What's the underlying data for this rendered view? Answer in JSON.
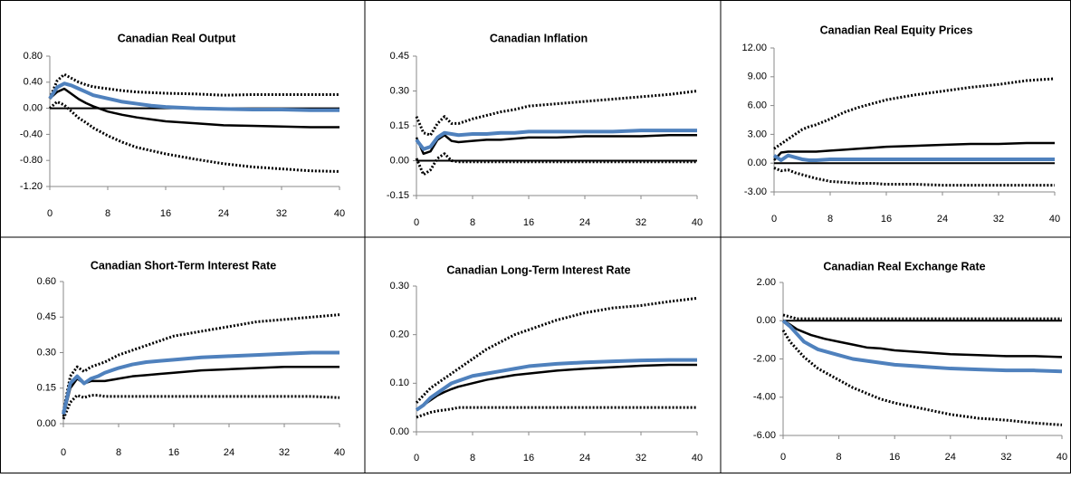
{
  "chart_data": [
    {
      "type": "line",
      "title": "Canadian Real Output",
      "x": [
        0,
        1,
        2,
        3,
        4,
        5,
        6,
        8,
        10,
        12,
        14,
        16,
        20,
        24,
        28,
        32,
        36,
        40
      ],
      "xlim": [
        0,
        40
      ],
      "xticks": [
        0,
        8,
        16,
        24,
        32,
        40
      ],
      "ylim": [
        -1.2,
        0.8
      ],
      "yticks": [
        {
          "value": -1.2,
          "label": "-1.20"
        },
        {
          "value": -0.8,
          "label": "-0.80"
        },
        {
          "value": -0.4,
          "label": "-0.40"
        },
        {
          "value": 0,
          "label": "0.00"
        },
        {
          "value": 0.4,
          "label": "0.40"
        },
        {
          "value": 0.8,
          "label": "0.80"
        }
      ],
      "series": [
        {
          "color": "#000000",
          "style": "dotted",
          "values": [
            0.15,
            0.42,
            0.52,
            0.46,
            0.4,
            0.36,
            0.33,
            0.3,
            0.27,
            0.25,
            0.24,
            0.23,
            0.22,
            0.2,
            0.21,
            0.21,
            0.21,
            0.21
          ]
        },
        {
          "color": "#000000",
          "style": "dotted",
          "values": [
            0,
            0.1,
            0.05,
            -0.05,
            -0.15,
            -0.22,
            -0.3,
            -0.42,
            -0.52,
            -0.6,
            -0.65,
            -0.7,
            -0.78,
            -0.85,
            -0.9,
            -0.93,
            -0.96,
            -0.97
          ]
        },
        {
          "color": "#000000",
          "style": "solid",
          "values": [
            0.15,
            0.25,
            0.3,
            0.22,
            0.14,
            0.08,
            0.03,
            -0.05,
            -0.1,
            -0.14,
            -0.17,
            -0.2,
            -0.23,
            -0.26,
            -0.27,
            -0.28,
            -0.29,
            -0.29
          ]
        },
        {
          "color": "#4f81bd",
          "style": "solid",
          "values": [
            0.15,
            0.32,
            0.38,
            0.35,
            0.3,
            0.25,
            0.2,
            0.15,
            0.1,
            0.07,
            0.04,
            0.02,
            0,
            -0.01,
            -0.02,
            -0.02,
            -0.03,
            -0.03
          ]
        }
      ]
    },
    {
      "type": "line",
      "title": "Canadian Inflation",
      "x": [
        0,
        1,
        2,
        3,
        4,
        5,
        6,
        8,
        10,
        12,
        14,
        16,
        20,
        24,
        28,
        32,
        36,
        40
      ],
      "xlim": [
        0,
        40
      ],
      "xticks": [
        0,
        8,
        16,
        24,
        32,
        40
      ],
      "ylim": [
        -0.15,
        0.45
      ],
      "yticks": [
        {
          "value": -0.15,
          "label": "-0.15"
        },
        {
          "value": 0,
          "label": "0.00"
        },
        {
          "value": 0.15,
          "label": "0.15"
        },
        {
          "value": 0.3,
          "label": "0.30"
        },
        {
          "value": 0.45,
          "label": "0.45"
        }
      ],
      "series": [
        {
          "color": "#000000",
          "style": "dotted",
          "values": [
            0.19,
            0.12,
            0.11,
            0.16,
            0.19,
            0.16,
            0.16,
            0.18,
            0.195,
            0.21,
            0.22,
            0.235,
            0.245,
            0.255,
            0.265,
            0.275,
            0.285,
            0.3
          ]
        },
        {
          "color": "#000000",
          "style": "dotted",
          "values": [
            0.01,
            -0.06,
            -0.04,
            0.01,
            0.03,
            0,
            -0.005,
            -0.005,
            -0.005,
            -0.005,
            -0.005,
            -0.005,
            -0.005,
            -0.005,
            -0.005,
            -0.005,
            -0.005,
            -0.005
          ]
        },
        {
          "color": "#000000",
          "style": "solid",
          "values": [
            0.1,
            0.03,
            0.04,
            0.09,
            0.11,
            0.085,
            0.08,
            0.085,
            0.09,
            0.09,
            0.095,
            0.1,
            0.1,
            0.105,
            0.105,
            0.105,
            0.11,
            0.11
          ]
        },
        {
          "color": "#4f81bd",
          "style": "solid",
          "values": [
            0.09,
            0.05,
            0.06,
            0.1,
            0.12,
            0.115,
            0.11,
            0.115,
            0.115,
            0.12,
            0.12,
            0.125,
            0.125,
            0.125,
            0.125,
            0.13,
            0.13,
            0.13
          ]
        }
      ]
    },
    {
      "type": "line",
      "title": "Canadian Real Equity Prices",
      "x": [
        0,
        1,
        2,
        3,
        4,
        5,
        6,
        8,
        10,
        12,
        14,
        16,
        20,
        24,
        28,
        32,
        36,
        40
      ],
      "xlim": [
        0,
        40
      ],
      "xticks": [
        0,
        8,
        16,
        24,
        32,
        40
      ],
      "ylim": [
        -3,
        12
      ],
      "yticks": [
        {
          "value": -3,
          "label": "-3.00"
        },
        {
          "value": 0,
          "label": "0.00"
        },
        {
          "value": 3,
          "label": "3.00"
        },
        {
          "value": 6,
          "label": "6.00"
        },
        {
          "value": 9,
          "label": "9.00"
        },
        {
          "value": 12,
          "label": "12.00"
        }
      ],
      "series": [
        {
          "color": "#000000",
          "style": "dotted",
          "values": [
            1.5,
            2,
            2.5,
            3,
            3.5,
            3.8,
            4,
            4.6,
            5.3,
            5.8,
            6.2,
            6.6,
            7.1,
            7.5,
            7.9,
            8.2,
            8.6,
            8.8
          ]
        },
        {
          "color": "#000000",
          "style": "dotted",
          "values": [
            -0.5,
            -0.8,
            -0.7,
            -1,
            -1.2,
            -1.4,
            -1.6,
            -1.9,
            -2,
            -2.1,
            -2.1,
            -2.2,
            -2.2,
            -2.3,
            -2.3,
            -2.3,
            -2.3,
            -2.3
          ]
        },
        {
          "color": "#000000",
          "style": "solid",
          "values": [
            0.3,
            1.1,
            1.2,
            1.2,
            1.2,
            1.2,
            1.2,
            1.3,
            1.4,
            1.5,
            1.6,
            1.7,
            1.8,
            1.9,
            2,
            2,
            2.1,
            2.1
          ]
        },
        {
          "color": "#4f81bd",
          "style": "solid",
          "values": [
            0.8,
            0.3,
            0.8,
            0.6,
            0.4,
            0.3,
            0.3,
            0.4,
            0.4,
            0.4,
            0.4,
            0.4,
            0.4,
            0.4,
            0.4,
            0.4,
            0.4,
            0.4
          ]
        }
      ]
    },
    {
      "type": "line",
      "title": "Canadian Short-Term Interest Rate",
      "x": [
        0,
        1,
        2,
        3,
        4,
        5,
        6,
        8,
        10,
        12,
        14,
        16,
        20,
        24,
        28,
        32,
        36,
        40
      ],
      "xlim": [
        0,
        40
      ],
      "xticks": [
        0,
        8,
        16,
        24,
        32,
        40
      ],
      "ylim": [
        0,
        0.6
      ],
      "yticks": [
        {
          "value": 0,
          "label": "0.00"
        },
        {
          "value": 0.15,
          "label": "0.15"
        },
        {
          "value": 0.3,
          "label": "0.30"
        },
        {
          "value": 0.45,
          "label": "0.45"
        },
        {
          "value": 0.6,
          "label": "0.60"
        }
      ],
      "series": [
        {
          "color": "#000000",
          "style": "dotted",
          "values": [
            0.05,
            0.2,
            0.24,
            0.22,
            0.24,
            0.25,
            0.26,
            0.29,
            0.31,
            0.33,
            0.35,
            0.37,
            0.39,
            0.41,
            0.43,
            0.44,
            0.45,
            0.46
          ]
        },
        {
          "color": "#000000",
          "style": "dotted",
          "values": [
            0.02,
            0.09,
            0.12,
            0.11,
            0.12,
            0.12,
            0.115,
            0.115,
            0.115,
            0.115,
            0.115,
            0.115,
            0.115,
            0.115,
            0.115,
            0.115,
            0.115,
            0.11
          ]
        },
        {
          "color": "#000000",
          "style": "solid",
          "values": [
            0.03,
            0.15,
            0.19,
            0.17,
            0.18,
            0.18,
            0.18,
            0.19,
            0.2,
            0.205,
            0.21,
            0.215,
            0.225,
            0.23,
            0.235,
            0.24,
            0.24,
            0.24
          ]
        },
        {
          "color": "#4f81bd",
          "style": "solid",
          "values": [
            0.04,
            0.17,
            0.2,
            0.17,
            0.19,
            0.2,
            0.215,
            0.235,
            0.25,
            0.26,
            0.265,
            0.27,
            0.28,
            0.285,
            0.29,
            0.295,
            0.3,
            0.3
          ]
        }
      ]
    },
    {
      "type": "line",
      "title": "Canadian Long-Term Interest Rate",
      "x": [
        0,
        1,
        2,
        3,
        4,
        5,
        6,
        8,
        10,
        12,
        14,
        16,
        20,
        24,
        28,
        32,
        36,
        40
      ],
      "xlim": [
        0,
        40
      ],
      "xticks": [
        0,
        8,
        16,
        24,
        32,
        40
      ],
      "ylim": [
        0,
        0.3
      ],
      "yticks": [
        {
          "value": 0,
          "label": "0.00"
        },
        {
          "value": 0.1,
          "label": "0.10"
        },
        {
          "value": 0.2,
          "label": "0.20"
        },
        {
          "value": 0.3,
          "label": "0.30"
        }
      ],
      "series": [
        {
          "color": "#000000",
          "style": "dotted",
          "values": [
            0.06,
            0.075,
            0.09,
            0.1,
            0.11,
            0.12,
            0.13,
            0.15,
            0.17,
            0.185,
            0.2,
            0.21,
            0.23,
            0.245,
            0.255,
            0.26,
            0.268,
            0.275
          ]
        },
        {
          "color": "#000000",
          "style": "dotted",
          "values": [
            0.03,
            0.035,
            0.04,
            0.043,
            0.045,
            0.047,
            0.05,
            0.05,
            0.05,
            0.05,
            0.05,
            0.05,
            0.05,
            0.05,
            0.05,
            0.05,
            0.05,
            0.05
          ]
        },
        {
          "color": "#000000",
          "style": "solid",
          "values": [
            0.045,
            0.055,
            0.065,
            0.075,
            0.082,
            0.088,
            0.093,
            0.1,
            0.107,
            0.112,
            0.117,
            0.12,
            0.126,
            0.13,
            0.133,
            0.136,
            0.138,
            0.138
          ]
        },
        {
          "color": "#4f81bd",
          "style": "solid",
          "values": [
            0.045,
            0.055,
            0.07,
            0.08,
            0.09,
            0.1,
            0.105,
            0.115,
            0.12,
            0.125,
            0.13,
            0.135,
            0.14,
            0.143,
            0.145,
            0.147,
            0.148,
            0.148
          ]
        }
      ]
    },
    {
      "type": "line",
      "title": "Canadian Real Exchange Rate",
      "x": [
        0,
        1,
        2,
        3,
        4,
        5,
        6,
        8,
        10,
        12,
        14,
        16,
        20,
        24,
        28,
        32,
        36,
        40
      ],
      "xlim": [
        0,
        40
      ],
      "xticks": [
        0,
        8,
        16,
        24,
        32,
        40
      ],
      "ylim": [
        -6,
        2
      ],
      "yticks": [
        {
          "value": -6,
          "label": "-6.00"
        },
        {
          "value": -4,
          "label": "-4.00"
        },
        {
          "value": -2,
          "label": "-2.00"
        },
        {
          "value": 0,
          "label": "0.00"
        },
        {
          "value": 2,
          "label": "2.00"
        }
      ],
      "series": [
        {
          "color": "#000000",
          "style": "dotted",
          "values": [
            0.3,
            0.2,
            0.1,
            0.1,
            0.1,
            0.1,
            0.1,
            0.1,
            0.1,
            0.1,
            0.1,
            0.1,
            0.1,
            0.1,
            0.1,
            0.1,
            0.1,
            0.1
          ]
        },
        {
          "color": "#000000",
          "style": "dotted",
          "values": [
            -0.5,
            -1.1,
            -1.5,
            -1.9,
            -2.2,
            -2.5,
            -2.7,
            -3.1,
            -3.5,
            -3.8,
            -4.1,
            -4.3,
            -4.6,
            -4.9,
            -5.1,
            -5.2,
            -5.35,
            -5.45
          ]
        },
        {
          "color": "#000000",
          "style": "solid",
          "values": [
            0,
            -0.2,
            -0.45,
            -0.6,
            -0.75,
            -0.85,
            -0.95,
            -1.1,
            -1.25,
            -1.4,
            -1.45,
            -1.55,
            -1.65,
            -1.75,
            -1.8,
            -1.85,
            -1.85,
            -1.9
          ]
        },
        {
          "color": "#4f81bd",
          "style": "solid",
          "values": [
            0,
            -0.3,
            -0.7,
            -1.1,
            -1.3,
            -1.5,
            -1.6,
            -1.8,
            -2,
            -2.1,
            -2.2,
            -2.3,
            -2.4,
            -2.5,
            -2.55,
            -2.6,
            -2.6,
            -2.65
          ]
        }
      ]
    }
  ]
}
